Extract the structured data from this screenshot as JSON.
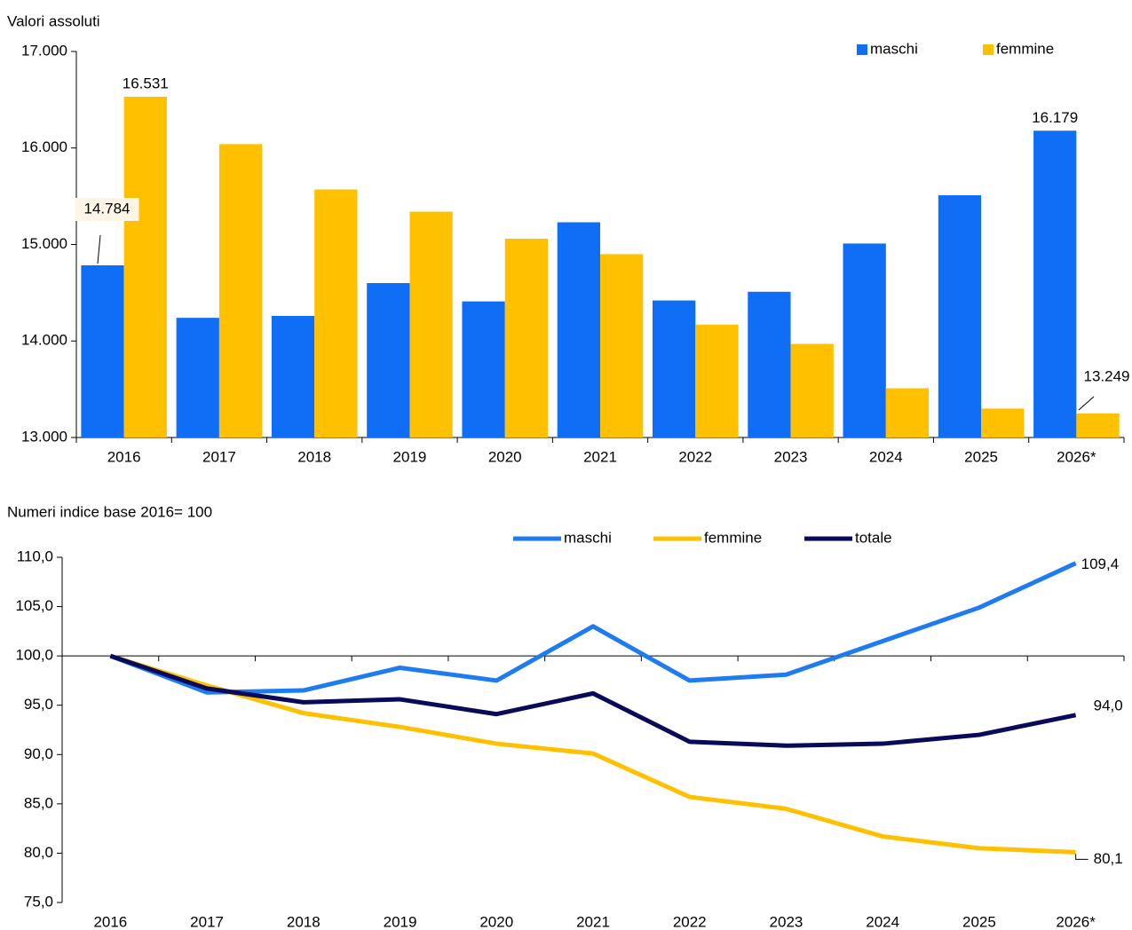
{
  "chart_data": [
    {
      "type": "bar",
      "title": "Valori assoluti",
      "categories": [
        "2016",
        "2017",
        "2018",
        "2019",
        "2020",
        "2021",
        "2022",
        "2023",
        "2024",
        "2025",
        "2026*"
      ],
      "series": [
        {
          "name": "maschi",
          "color": "#0f6ef5",
          "values": [
            14784,
            14240,
            14260,
            14600,
            14410,
            15230,
            14420,
            14510,
            15010,
            15510,
            16179
          ],
          "value_labels": [
            "14.784",
            null,
            null,
            null,
            null,
            null,
            null,
            null,
            null,
            null,
            "16.179"
          ]
        },
        {
          "name": "femmine",
          "color": "#ffc000",
          "values": [
            16531,
            16040,
            15570,
            15340,
            15060,
            14900,
            14170,
            13970,
            13510,
            13300,
            13249
          ],
          "value_labels": [
            "16.531",
            null,
            null,
            null,
            null,
            null,
            null,
            null,
            null,
            null,
            "13.249"
          ]
        }
      ],
      "ylim": [
        13000,
        17000
      ],
      "yticks": [
        {
          "value": 13000,
          "label": "13.000"
        },
        {
          "value": 14000,
          "label": "14.000"
        },
        {
          "value": 15000,
          "label": "15.000"
        },
        {
          "value": 16000,
          "label": "16.000"
        },
        {
          "value": 17000,
          "label": "17.000"
        }
      ],
      "legend": "top-right"
    },
    {
      "type": "line",
      "title": "Numeri indice base 2016= 100",
      "categories": [
        "2016",
        "2017",
        "2018",
        "2019",
        "2020",
        "2021",
        "2022",
        "2023",
        "2024",
        "2025",
        "2026*"
      ],
      "series": [
        {
          "name": "maschi",
          "color": "#1e7bf0",
          "values": [
            100,
            96.3,
            96.5,
            98.8,
            97.5,
            103.0,
            97.5,
            98.1,
            101.5,
            104.9,
            109.4
          ],
          "value_labels": [
            null,
            null,
            null,
            null,
            null,
            null,
            null,
            null,
            null,
            null,
            "109,4"
          ]
        },
        {
          "name": "femmine",
          "color": "#ffc000",
          "values": [
            100,
            97.0,
            94.2,
            92.8,
            91.1,
            90.1,
            85.7,
            84.5,
            81.7,
            80.5,
            80.1
          ],
          "value_labels": [
            null,
            null,
            null,
            null,
            null,
            null,
            null,
            null,
            null,
            null,
            "80,1"
          ]
        },
        {
          "name": "totale",
          "color": "#0a0a5a",
          "values": [
            100,
            96.7,
            95.3,
            95.6,
            94.1,
            96.2,
            91.3,
            90.9,
            91.1,
            92.0,
            94.0
          ],
          "value_labels": [
            null,
            null,
            null,
            null,
            null,
            null,
            null,
            null,
            null,
            null,
            "94,0"
          ]
        }
      ],
      "ylim": [
        75,
        110
      ],
      "yticks": [
        {
          "value": 75,
          "label": "75,0"
        },
        {
          "value": 80,
          "label": "80,0"
        },
        {
          "value": 85,
          "label": "85,0"
        },
        {
          "value": 90,
          "label": "90,0"
        },
        {
          "value": 95,
          "label": "95,0"
        },
        {
          "value": 100,
          "label": "100,0"
        },
        {
          "value": 105,
          "label": "105,0"
        },
        {
          "value": 110,
          "label": "110,0"
        }
      ],
      "legend": "top-center"
    }
  ]
}
